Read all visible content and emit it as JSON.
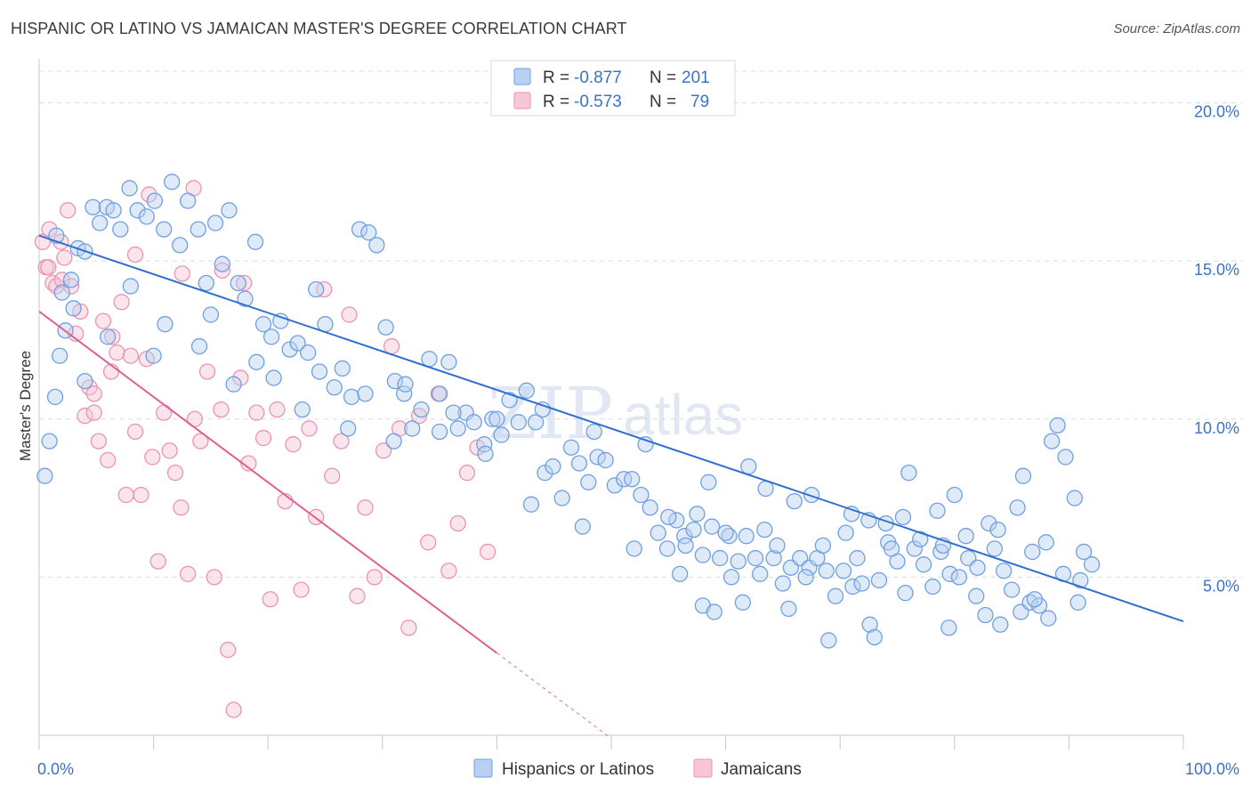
{
  "title": "HISPANIC OR LATINO VS JAMAICAN MASTER'S DEGREE CORRELATION CHART",
  "source": "Source: ZipAtlas.com",
  "watermark": {
    "zip": "ZIP",
    "atlas": "atlas"
  },
  "legend": {
    "rows": [
      {
        "r_label": "R =",
        "r_value": "-0.877",
        "n_label": "N =",
        "n_value": "201"
      },
      {
        "r_label": "R =",
        "r_value": "-0.573",
        "n_label": "N =",
        "n_value": "79"
      }
    ]
  },
  "bottom_legend": [
    "Hispanics or Latinos",
    "Jamaicans"
  ],
  "colors": {
    "blue": "#6fa0e0",
    "blue_fill": "#b9d0f2",
    "blue_line": "#2f6fcf",
    "pink": "#ec93b3",
    "pink_fill": "#f7c6d7",
    "pink_line": "#e0608f",
    "tick_text": "#3b72c4"
  },
  "chart_data": {
    "type": "scatter",
    "title": "HISPANIC OR LATINO VS JAMAICAN MASTER'S DEGREE CORRELATION CHART",
    "xlabel": "",
    "ylabel": "Master's Degree",
    "xlim": [
      0,
      100
    ],
    "ylim": [
      0,
      21
    ],
    "x_tick_labels": [
      "0.0%",
      "100.0%"
    ],
    "y_ticks": [
      5,
      10,
      15,
      20
    ],
    "y_tick_labels": [
      "5.0%",
      "10.0%",
      "15.0%",
      "20.0%"
    ],
    "grid": true,
    "legend_position": "top-center",
    "series": [
      {
        "name": "Hispanics or Latinos",
        "color": "#6fa0e0",
        "trend": {
          "x": [
            0,
            100
          ],
          "y": [
            15.8,
            3.6
          ]
        },
        "points": [
          [
            0.5,
            8.2
          ],
          [
            0.9,
            9.3
          ],
          [
            1.4,
            10.7
          ],
          [
            1.8,
            12.0
          ],
          [
            2.3,
            12.8
          ],
          [
            2.8,
            14.4
          ],
          [
            3.4,
            15.4
          ],
          [
            4.0,
            15.3
          ],
          [
            4.7,
            16.7
          ],
          [
            5.3,
            16.2
          ],
          [
            5.9,
            16.7
          ],
          [
            6.5,
            16.6
          ],
          [
            7.1,
            16.0
          ],
          [
            7.9,
            17.3
          ],
          [
            8.6,
            16.6
          ],
          [
            9.4,
            16.4
          ],
          [
            10.1,
            16.9
          ],
          [
            10.9,
            16.0
          ],
          [
            11.6,
            17.5
          ],
          [
            12.3,
            15.5
          ],
          [
            13.0,
            16.9
          ],
          [
            13.9,
            16.0
          ],
          [
            14.6,
            14.3
          ],
          [
            15.4,
            16.2
          ],
          [
            16.0,
            14.9
          ],
          [
            16.6,
            16.6
          ],
          [
            17.4,
            14.3
          ],
          [
            18.0,
            13.8
          ],
          [
            18.9,
            15.6
          ],
          [
            19.6,
            13.0
          ],
          [
            20.3,
            12.6
          ],
          [
            21.1,
            13.1
          ],
          [
            21.9,
            12.2
          ],
          [
            22.6,
            12.4
          ],
          [
            23.5,
            12.1
          ],
          [
            24.2,
            14.1
          ],
          [
            25.0,
            13.0
          ],
          [
            25.8,
            11.0
          ],
          [
            26.5,
            11.6
          ],
          [
            27.3,
            10.7
          ],
          [
            28.0,
            16.0
          ],
          [
            28.8,
            15.9
          ],
          [
            29.5,
            15.5
          ],
          [
            30.3,
            12.9
          ],
          [
            31.1,
            11.2
          ],
          [
            31.9,
            10.8
          ],
          [
            32.6,
            9.7
          ],
          [
            33.4,
            10.3
          ],
          [
            34.1,
            11.9
          ],
          [
            35.0,
            10.8
          ],
          [
            35.8,
            11.8
          ],
          [
            36.6,
            9.7
          ],
          [
            37.3,
            10.2
          ],
          [
            38.0,
            9.9
          ],
          [
            38.9,
            9.2
          ],
          [
            39.6,
            10.0
          ],
          [
            40.4,
            9.5
          ],
          [
            41.1,
            10.6
          ],
          [
            41.9,
            9.9
          ],
          [
            42.6,
            10.9
          ],
          [
            43.4,
            9.9
          ],
          [
            44.2,
            8.3
          ],
          [
            44.9,
            8.5
          ],
          [
            45.7,
            7.5
          ],
          [
            46.5,
            9.1
          ],
          [
            47.2,
            8.6
          ],
          [
            48.0,
            8.0
          ],
          [
            48.8,
            8.8
          ],
          [
            49.5,
            8.7
          ],
          [
            50.3,
            7.9
          ],
          [
            51.1,
            8.1
          ],
          [
            51.8,
            8.1
          ],
          [
            52.6,
            7.6
          ],
          [
            53.4,
            7.2
          ],
          [
            54.1,
            6.4
          ],
          [
            54.9,
            5.9
          ],
          [
            55.7,
            6.8
          ],
          [
            56.4,
            6.3
          ],
          [
            57.2,
            6.5
          ],
          [
            58.0,
            5.7
          ],
          [
            58.8,
            6.6
          ],
          [
            59.5,
            5.6
          ],
          [
            60.3,
            6.3
          ],
          [
            61.1,
            5.5
          ],
          [
            61.8,
            6.3
          ],
          [
            62.6,
            5.6
          ],
          [
            63.4,
            6.5
          ],
          [
            64.2,
            5.6
          ],
          [
            65.0,
            4.8
          ],
          [
            65.7,
            5.3
          ],
          [
            66.5,
            5.6
          ],
          [
            67.3,
            5.3
          ],
          [
            68.0,
            5.6
          ],
          [
            68.8,
            5.2
          ],
          [
            69.6,
            4.4
          ],
          [
            70.3,
            5.2
          ],
          [
            71.1,
            4.7
          ],
          [
            71.9,
            4.8
          ],
          [
            72.6,
            3.5
          ],
          [
            73.4,
            4.9
          ],
          [
            74.2,
            6.1
          ],
          [
            75.0,
            5.5
          ],
          [
            75.7,
            4.5
          ],
          [
            76.5,
            5.9
          ],
          [
            77.3,
            5.4
          ],
          [
            78.1,
            4.7
          ],
          [
            78.8,
            5.8
          ],
          [
            79.6,
            5.1
          ],
          [
            80.4,
            5.0
          ],
          [
            81.2,
            5.6
          ],
          [
            81.9,
            4.4
          ],
          [
            82.7,
            3.8
          ],
          [
            83.5,
            5.9
          ],
          [
            84.3,
            5.2
          ],
          [
            85.0,
            4.6
          ],
          [
            85.8,
            3.9
          ],
          [
            86.6,
            4.2
          ],
          [
            87.4,
            4.1
          ],
          [
            88.2,
            3.7
          ],
          [
            89.0,
            9.8
          ],
          [
            89.7,
            8.8
          ],
          [
            90.5,
            7.5
          ],
          [
            91.3,
            5.8
          ],
          [
            92.0,
            5.4
          ],
          [
            55.0,
            6.9
          ],
          [
            60.0,
            6.4
          ],
          [
            63.0,
            5.1
          ],
          [
            68.5,
            6.0
          ],
          [
            74.0,
            6.7
          ],
          [
            77.0,
            6.2
          ],
          [
            82.0,
            5.3
          ],
          [
            86.0,
            8.2
          ],
          [
            88.5,
            9.3
          ],
          [
            80.0,
            7.6
          ],
          [
            76.0,
            8.3
          ],
          [
            71.0,
            7.0
          ],
          [
            66.0,
            7.4
          ],
          [
            62.0,
            8.5
          ],
          [
            57.5,
            7.0
          ],
          [
            52.0,
            5.9
          ],
          [
            47.5,
            6.6
          ],
          [
            43.0,
            7.3
          ],
          [
            39.0,
            8.9
          ],
          [
            35.0,
            9.6
          ],
          [
            31.0,
            9.3
          ],
          [
            27.0,
            9.7
          ],
          [
            23.0,
            10.3
          ],
          [
            19.0,
            11.8
          ],
          [
            15.0,
            13.3
          ],
          [
            11.0,
            13.0
          ],
          [
            8.0,
            14.2
          ],
          [
            6.0,
            12.6
          ],
          [
            4.0,
            11.2
          ],
          [
            3.0,
            13.5
          ],
          [
            2.0,
            14.0
          ],
          [
            1.5,
            15.8
          ],
          [
            10.0,
            12.0
          ],
          [
            14.0,
            12.3
          ],
          [
            17.0,
            11.1
          ],
          [
            20.5,
            11.3
          ],
          [
            24.5,
            11.5
          ],
          [
            28.5,
            10.8
          ],
          [
            32.0,
            11.1
          ],
          [
            36.2,
            10.2
          ],
          [
            40.0,
            10.0
          ],
          [
            44.0,
            10.3
          ],
          [
            48.5,
            9.6
          ],
          [
            53.0,
            9.2
          ],
          [
            58.5,
            8.0
          ],
          [
            63.5,
            7.8
          ],
          [
            67.5,
            7.6
          ],
          [
            72.5,
            6.8
          ],
          [
            78.5,
            7.1
          ],
          [
            83.0,
            6.7
          ],
          [
            88.0,
            6.1
          ],
          [
            91.0,
            4.9
          ],
          [
            87.0,
            4.3
          ],
          [
            84.0,
            3.5
          ],
          [
            79.5,
            3.4
          ],
          [
            73.0,
            3.1
          ],
          [
            69.0,
            3.0
          ],
          [
            65.5,
            4.0
          ],
          [
            61.5,
            4.2
          ],
          [
            58.0,
            4.1
          ],
          [
            56.0,
            5.1
          ],
          [
            59.0,
            3.9
          ],
          [
            70.5,
            6.4
          ],
          [
            75.5,
            6.9
          ],
          [
            81.0,
            6.3
          ],
          [
            85.5,
            7.2
          ],
          [
            89.5,
            5.1
          ],
          [
            90.8,
            4.2
          ],
          [
            86.8,
            5.8
          ],
          [
            83.8,
            6.5
          ],
          [
            79.0,
            6.0
          ],
          [
            74.5,
            5.9
          ],
          [
            71.5,
            5.6
          ],
          [
            67.0,
            5.0
          ],
          [
            64.5,
            6.0
          ],
          [
            60.5,
            5.0
          ],
          [
            56.5,
            6.0
          ]
        ]
      },
      {
        "name": "Jamaicans",
        "color": "#ec93b3",
        "trend": {
          "x": [
            0,
            40
          ],
          "y": [
            13.4,
            2.6
          ]
        },
        "trend_dashed": {
          "x": [
            40,
            50
          ],
          "y": [
            2.6,
            -0.1
          ]
        },
        "points": [
          [
            0.3,
            15.6
          ],
          [
            0.6,
            14.8
          ],
          [
            0.9,
            16.0
          ],
          [
            1.2,
            14.3
          ],
          [
            1.5,
            14.2
          ],
          [
            1.9,
            15.6
          ],
          [
            2.2,
            15.1
          ],
          [
            2.5,
            16.6
          ],
          [
            2.8,
            14.2
          ],
          [
            3.2,
            12.7
          ],
          [
            3.6,
            13.4
          ],
          [
            4.0,
            10.1
          ],
          [
            4.4,
            11.0
          ],
          [
            4.8,
            10.8
          ],
          [
            5.2,
            9.3
          ],
          [
            5.6,
            13.1
          ],
          [
            6.0,
            8.7
          ],
          [
            6.4,
            12.6
          ],
          [
            6.8,
            12.1
          ],
          [
            7.2,
            13.7
          ],
          [
            7.6,
            7.6
          ],
          [
            8.0,
            12.0
          ],
          [
            8.4,
            9.6
          ],
          [
            8.9,
            7.6
          ],
          [
            9.4,
            11.9
          ],
          [
            9.9,
            8.8
          ],
          [
            10.4,
            5.5
          ],
          [
            10.9,
            10.2
          ],
          [
            11.4,
            9.0
          ],
          [
            11.9,
            8.3
          ],
          [
            12.4,
            7.2
          ],
          [
            13.0,
            5.1
          ],
          [
            13.6,
            10.0
          ],
          [
            14.1,
            9.3
          ],
          [
            14.7,
            11.5
          ],
          [
            15.3,
            5.0
          ],
          [
            15.9,
            10.3
          ],
          [
            16.5,
            2.7
          ],
          [
            17.0,
            0.8
          ],
          [
            17.6,
            11.3
          ],
          [
            18.3,
            8.6
          ],
          [
            19.0,
            10.2
          ],
          [
            19.6,
            9.4
          ],
          [
            20.2,
            4.3
          ],
          [
            20.8,
            10.3
          ],
          [
            21.5,
            7.4
          ],
          [
            22.2,
            9.2
          ],
          [
            22.9,
            4.6
          ],
          [
            23.6,
            9.7
          ],
          [
            24.2,
            6.9
          ],
          [
            24.9,
            14.1
          ],
          [
            25.6,
            8.2
          ],
          [
            26.4,
            9.3
          ],
          [
            27.1,
            13.3
          ],
          [
            27.8,
            4.4
          ],
          [
            28.5,
            7.2
          ],
          [
            29.3,
            5.0
          ],
          [
            30.1,
            9.0
          ],
          [
            30.8,
            12.3
          ],
          [
            31.5,
            9.7
          ],
          [
            32.3,
            3.4
          ],
          [
            33.2,
            10.1
          ],
          [
            34.0,
            6.1
          ],
          [
            34.9,
            10.8
          ],
          [
            35.8,
            5.2
          ],
          [
            36.6,
            6.7
          ],
          [
            37.4,
            8.3
          ],
          [
            38.3,
            9.1
          ],
          [
            39.2,
            5.8
          ],
          [
            13.5,
            17.3
          ],
          [
            16.0,
            14.7
          ],
          [
            17.9,
            14.3
          ],
          [
            8.4,
            15.2
          ],
          [
            9.6,
            17.1
          ],
          [
            12.5,
            14.6
          ],
          [
            2.0,
            14.4
          ],
          [
            4.8,
            10.2
          ],
          [
            6.3,
            11.5
          ],
          [
            0.8,
            14.8
          ]
        ]
      }
    ]
  }
}
